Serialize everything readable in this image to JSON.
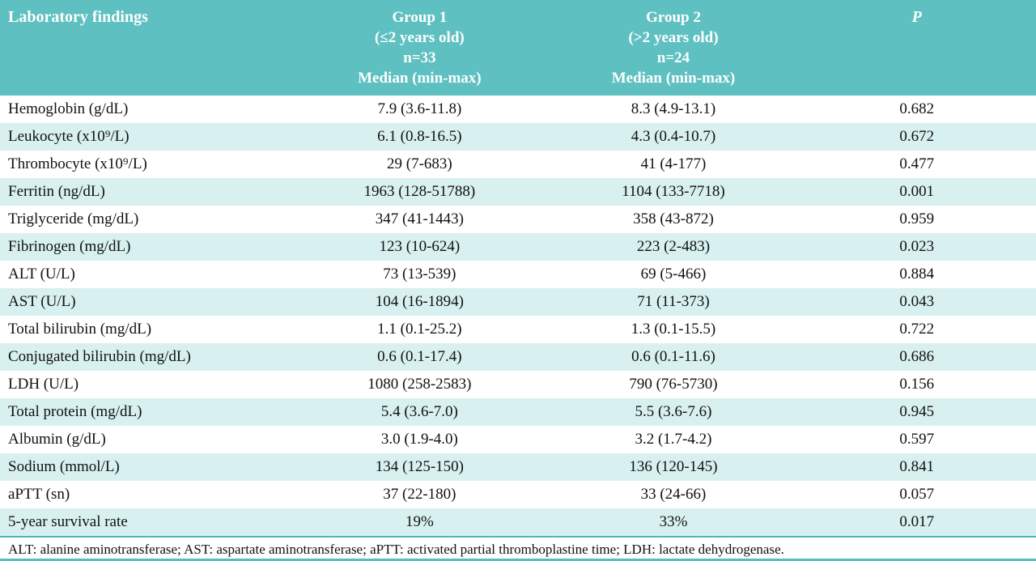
{
  "colors": {
    "header_teal": "#5ec0c1",
    "row_alt_teal": "#d8f0f0",
    "rule_teal": "#4db6b7",
    "header_text": "#ffffff",
    "body_text": "#111111"
  },
  "table": {
    "header": {
      "col1": "Laboratory findings",
      "col2_lines": [
        "Group 1",
        "(≤2 years old)",
        "n=33",
        "Median (min-max)"
      ],
      "col3_lines": [
        "Group 2",
        "(>2 years old)",
        "n=24",
        "Median (min-max)"
      ],
      "col4": "P"
    },
    "rows": [
      {
        "label": "Hemoglobin (g/dL)",
        "g1": "7.9 (3.6-11.8)",
        "g2": "8.3 (4.9-13.1)",
        "p": "0.682"
      },
      {
        "label": "Leukocyte (x10⁹/L)",
        "g1": "6.1 (0.8-16.5)",
        "g2": "4.3 (0.4-10.7)",
        "p": "0.672"
      },
      {
        "label": "Thrombocyte (x10⁹/L)",
        "g1": "29 (7-683)",
        "g2": "41 (4-177)",
        "p": "0.477"
      },
      {
        "label": "Ferritin (ng/dL)",
        "g1": "1963 (128-51788)",
        "g2": "1104 (133-7718)",
        "p": "0.001"
      },
      {
        "label": "Triglyceride (mg/dL)",
        "g1": "347 (41-1443)",
        "g2": "358 (43-872)",
        "p": "0.959"
      },
      {
        "label": "Fibrinogen (mg/dL)",
        "g1": "123 (10-624)",
        "g2": "223 (2-483)",
        "p": "0.023"
      },
      {
        "label": "ALT (U/L)",
        "g1": "73 (13-539)",
        "g2": "69 (5-466)",
        "p": "0.884"
      },
      {
        "label": "AST (U/L)",
        "g1": "104 (16-1894)",
        "g2": "71 (11-373)",
        "p": "0.043"
      },
      {
        "label": "Total bilirubin (mg/dL)",
        "g1": "1.1 (0.1-25.2)",
        "g2": "1.3 (0.1-15.5)",
        "p": "0.722"
      },
      {
        "label": "Conjugated bilirubin (mg/dL)",
        "g1": "0.6 (0.1-17.4)",
        "g2": "0.6 (0.1-11.6)",
        "p": "0.686"
      },
      {
        "label": "LDH (U/L)",
        "g1": "1080 (258-2583)",
        "g2": "790 (76-5730)",
        "p": "0.156"
      },
      {
        "label": "Total protein (mg/dL)",
        "g1": "5.4 (3.6-7.0)",
        "g2": "5.5 (3.6-7.6)",
        "p": "0.945"
      },
      {
        "label": "Albumin (g/dL)",
        "g1": "3.0 (1.9-4.0)",
        "g2": "3.2 (1.7-4.2)",
        "p": "0.597"
      },
      {
        "label": "Sodium (mmol/L)",
        "g1": "134 (125-150)",
        "g2": "136 (120-145)",
        "p": "0.841"
      },
      {
        "label": "aPTT (sn)",
        "g1": "37 (22-180)",
        "g2": "33 (24-66)",
        "p": "0.057"
      },
      {
        "label": "5-year survival rate",
        "g1": "19%",
        "g2": "33%",
        "p": "0.017"
      }
    ],
    "footnote": "ALT: alanine aminotransferase; AST: aspartate aminotransferase; aPTT: activated partial thromboplastine time;  LDH: lactate dehydrogenase."
  }
}
